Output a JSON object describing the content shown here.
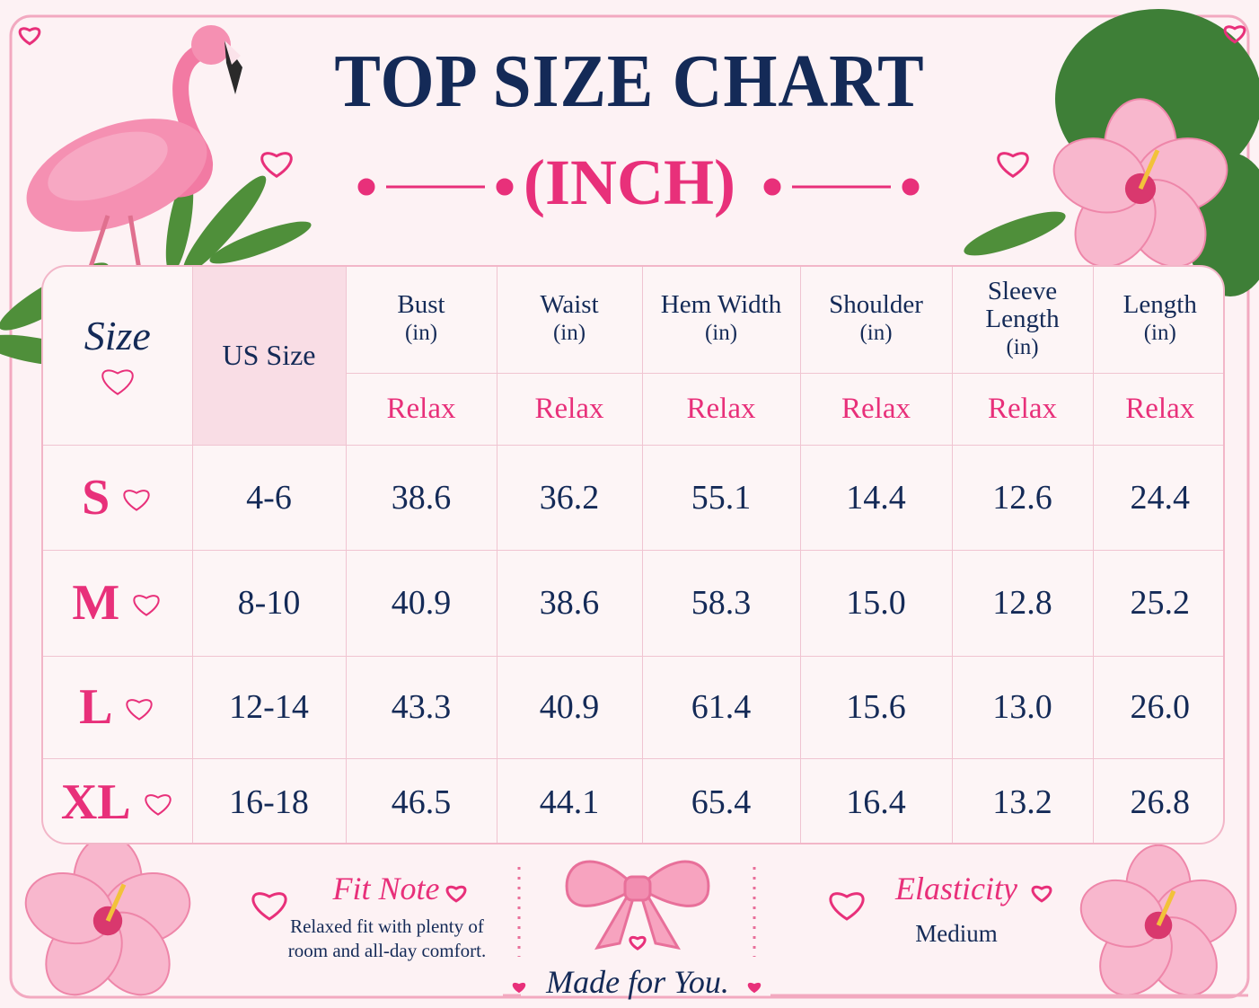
{
  "title": "TOP SIZE CHART",
  "subtitle": "(INCH)",
  "table": {
    "corner": "Size",
    "us_header": "US Size",
    "columns": [
      {
        "name": "Bust",
        "unit": "(in)",
        "fit": "Relax"
      },
      {
        "name": "Waist",
        "unit": "(in)",
        "fit": "Relax"
      },
      {
        "name": "Hem Width",
        "unit": "(in)",
        "fit": "Relax"
      },
      {
        "name": "Shoulder",
        "unit": "(in)",
        "fit": "Relax"
      },
      {
        "name": "Sleeve Length",
        "unit": "(in)",
        "fit": "Relax"
      },
      {
        "name": "Length",
        "unit": "(in)",
        "fit": "Relax"
      }
    ],
    "rows": [
      {
        "size": "S",
        "us": "4-6",
        "values": [
          "38.6",
          "36.2",
          "55.1",
          "14.4",
          "12.6",
          "24.4"
        ]
      },
      {
        "size": "M",
        "us": "8-10",
        "values": [
          "40.9",
          "38.6",
          "58.3",
          "15.0",
          "12.8",
          "25.2"
        ]
      },
      {
        "size": "L",
        "us": "12-14",
        "values": [
          "43.3",
          "40.9",
          "61.4",
          "15.6",
          "13.0",
          "26.0"
        ]
      },
      {
        "size": "XL",
        "us": "16-18",
        "values": [
          "46.5",
          "44.1",
          "65.4",
          "16.4",
          "13.2",
          "26.8"
        ]
      }
    ]
  },
  "fit_note": {
    "title": "Fit Note",
    "text": "Relaxed fit with plenty of room and all-day comfort."
  },
  "elasticity": {
    "title": "Elasticity",
    "value": "Medium"
  },
  "tagline": "Made for You."
}
